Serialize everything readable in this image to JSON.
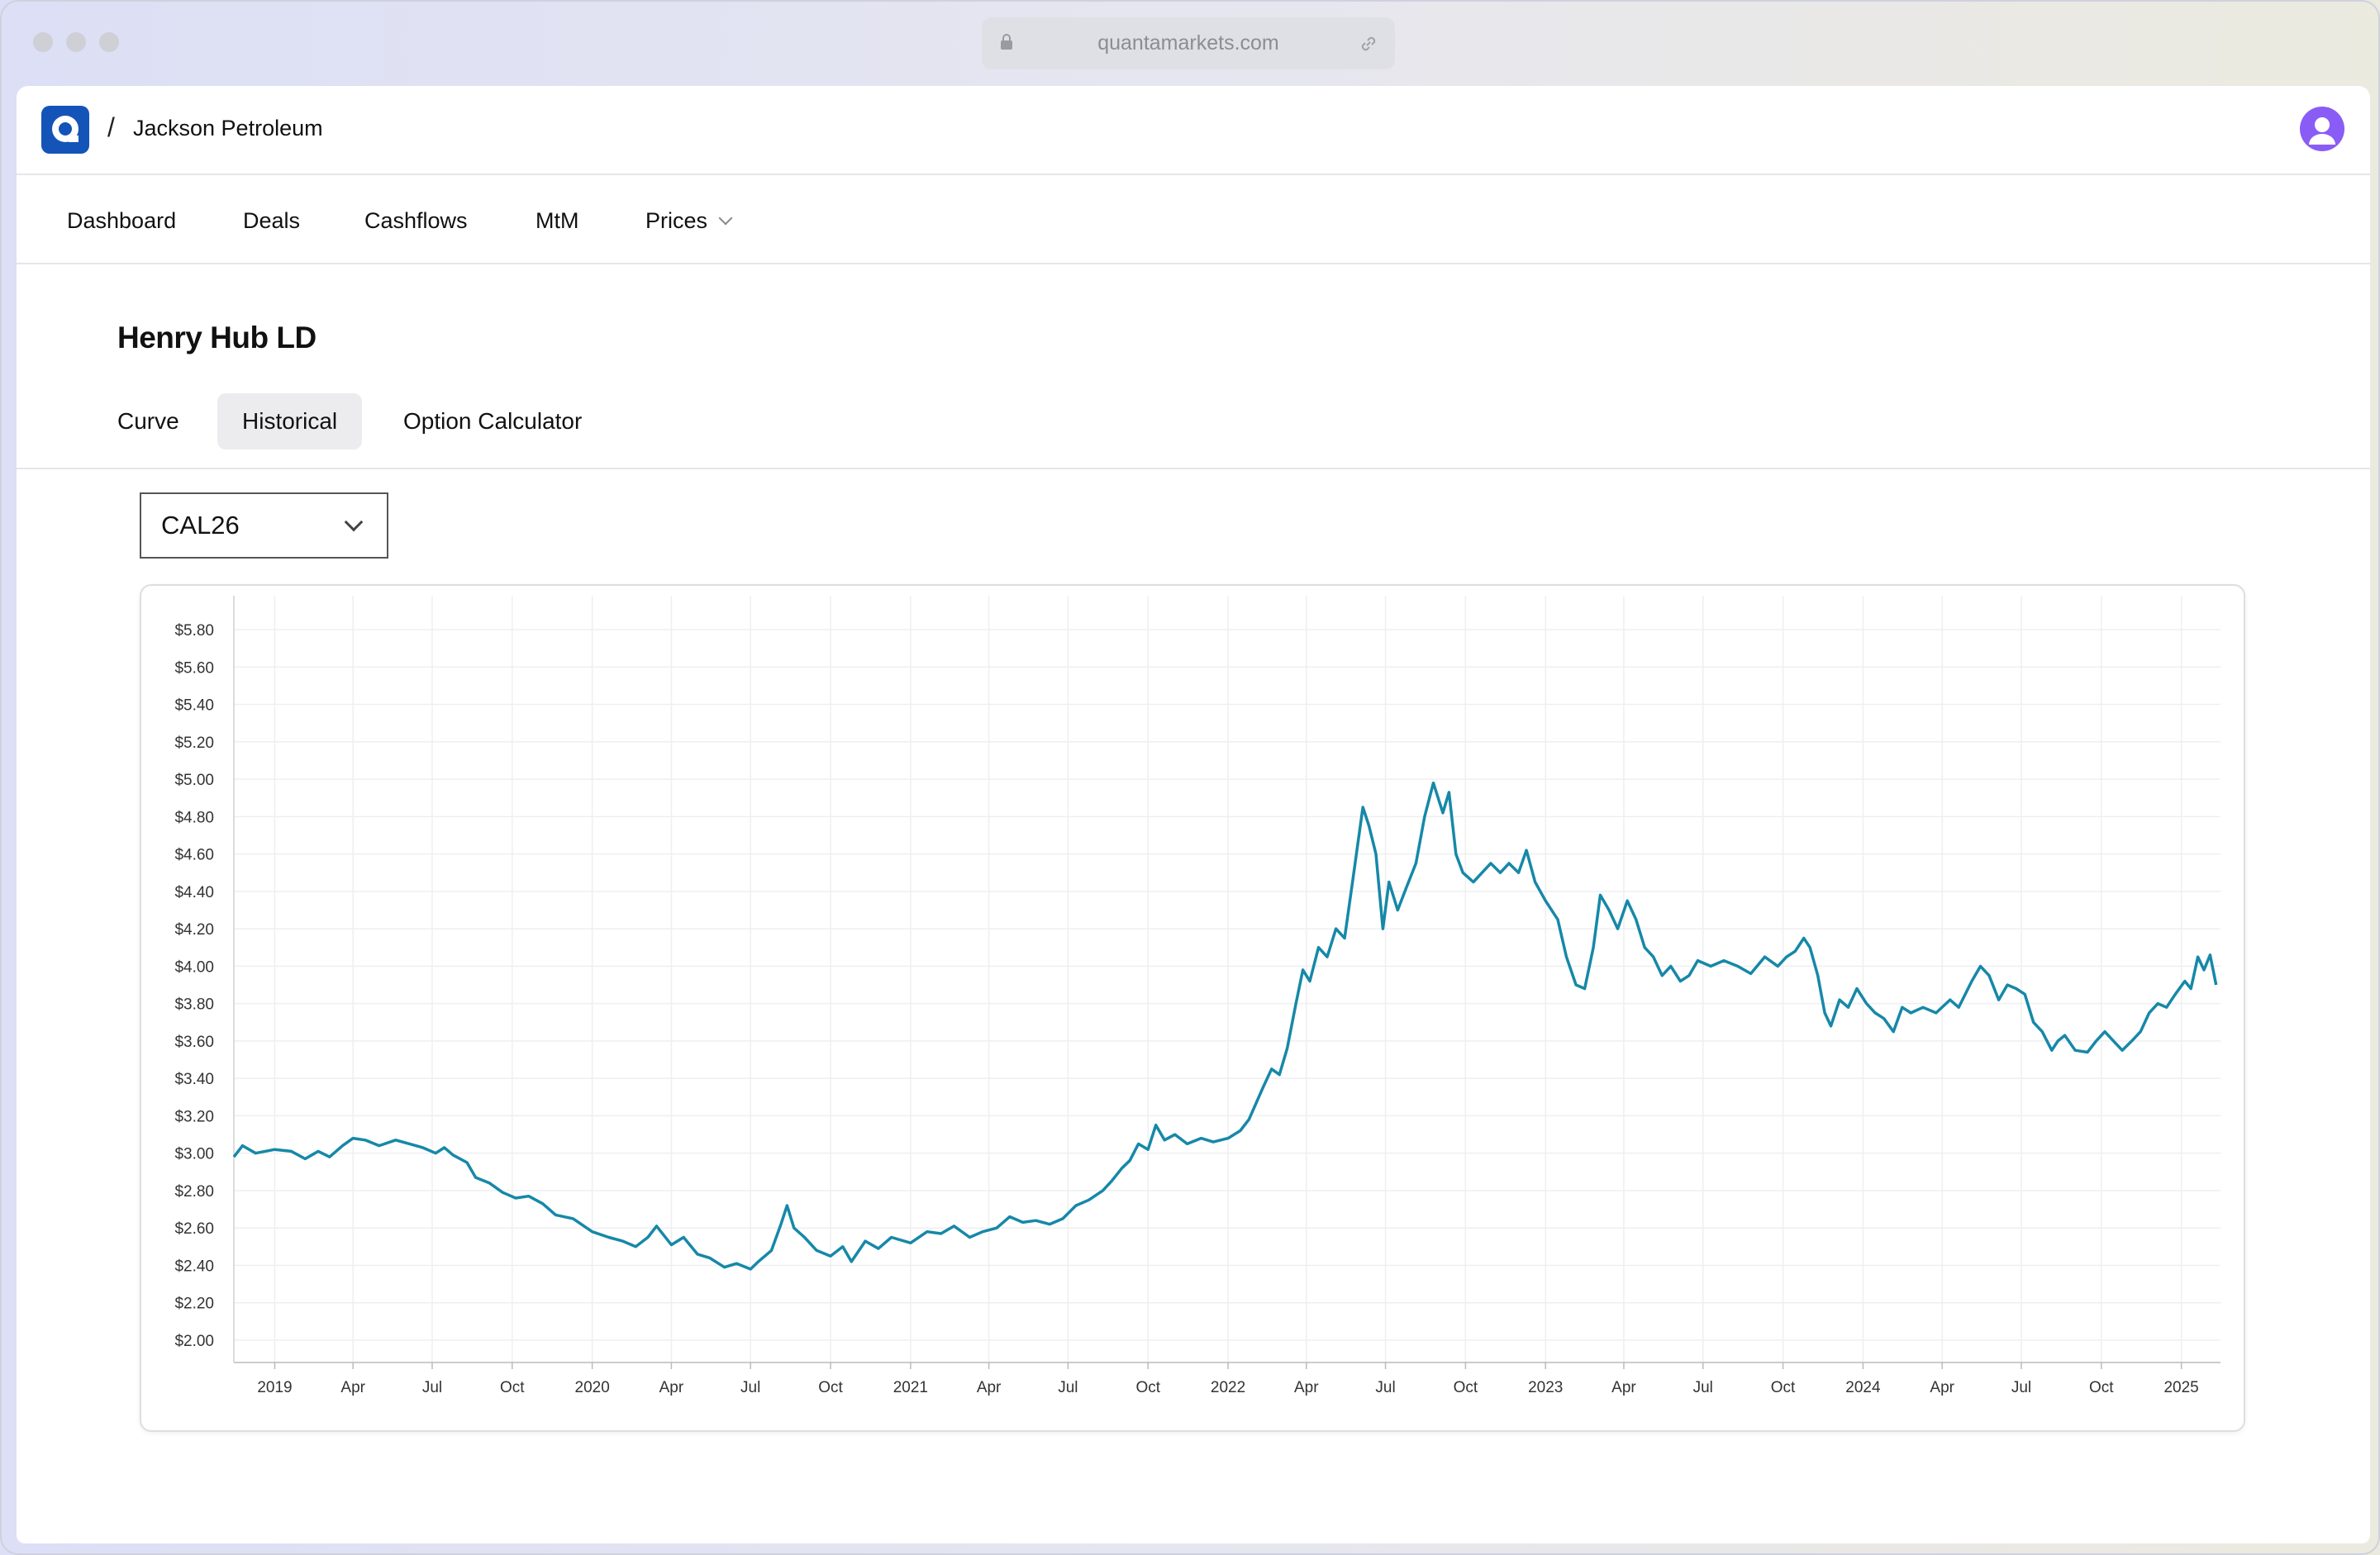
{
  "browser": {
    "url": "quantamarkets.com"
  },
  "header": {
    "separator": "/",
    "org_name": "Jackson Petroleum"
  },
  "nav": {
    "items": [
      {
        "label": "Dashboard"
      },
      {
        "label": "Deals"
      },
      {
        "label": "Cashflows"
      },
      {
        "label": "MtM"
      },
      {
        "label": "Prices"
      }
    ]
  },
  "page": {
    "title": "Henry Hub LD",
    "tabs": [
      {
        "label": "Curve"
      },
      {
        "label": "Historical"
      },
      {
        "label": "Option Calculator"
      }
    ],
    "active_tab": "Historical",
    "contract_select": {
      "value": "CAL26"
    }
  },
  "colors": {
    "line": "#1688a8",
    "brand": "#1454b8",
    "avatar": "#8a5cf6",
    "active_tab_bg": "#ececee"
  },
  "chart_data": {
    "type": "line",
    "title": "",
    "xlabel": "",
    "ylabel": "",
    "ylim": [
      2.0,
      5.8
    ],
    "y_ticks": [
      2.0,
      2.2,
      2.4,
      2.6,
      2.8,
      3.0,
      3.2,
      3.4,
      3.6,
      3.8,
      4.0,
      4.2,
      4.4,
      4.6,
      4.8,
      5.0,
      5.2,
      5.4,
      5.6,
      5.8
    ],
    "y_tick_labels": [
      "$2.00",
      "$2.20",
      "$2.40",
      "$2.60",
      "$2.80",
      "$3.00",
      "$3.20",
      "$3.40",
      "$3.60",
      "$3.80",
      "$4.00",
      "$4.20",
      "$4.40",
      "$4.60",
      "$4.80",
      "$5.00",
      "$5.20",
      "$5.40",
      "$5.60",
      "$5.80"
    ],
    "x_ticks": [
      "2019-01-01",
      "2019-04-01",
      "2019-07-01",
      "2019-10-01",
      "2020-01-01",
      "2020-04-01",
      "2020-07-01",
      "2020-10-01",
      "2021-01-01",
      "2021-04-01",
      "2021-07-01",
      "2021-10-01",
      "2022-01-01",
      "2022-04-01",
      "2022-07-01",
      "2022-10-01",
      "2023-01-01",
      "2023-04-01",
      "2023-07-01",
      "2023-10-01",
      "2024-01-01",
      "2024-04-01",
      "2024-07-01",
      "2024-10-01",
      "2025-01-01"
    ],
    "x_tick_labels": [
      "2019",
      "Apr",
      "Jul",
      "Oct",
      "2020",
      "Apr",
      "Jul",
      "Oct",
      "2021",
      "Apr",
      "Jul",
      "Oct",
      "2022",
      "Apr",
      "Jul",
      "Oct",
      "2023",
      "Apr",
      "Jul",
      "Oct",
      "2024",
      "Apr",
      "Jul",
      "Oct",
      "2025"
    ],
    "xlim": [
      "2018-11-15",
      "2025-02-15"
    ],
    "grid": true,
    "series": [
      {
        "name": "",
        "points": [
          [
            "2018-11-15",
            2.98
          ],
          [
            "2018-11-25",
            3.04
          ],
          [
            "2018-12-10",
            3.0
          ],
          [
            "2019-01-01",
            3.02
          ],
          [
            "2019-01-20",
            3.01
          ],
          [
            "2019-02-05",
            2.97
          ],
          [
            "2019-02-20",
            3.01
          ],
          [
            "2019-03-05",
            2.98
          ],
          [
            "2019-03-20",
            3.04
          ],
          [
            "2019-04-01",
            3.08
          ],
          [
            "2019-04-15",
            3.07
          ],
          [
            "2019-05-01",
            3.04
          ],
          [
            "2019-05-20",
            3.07
          ],
          [
            "2019-06-05",
            3.05
          ],
          [
            "2019-06-20",
            3.03
          ],
          [
            "2019-07-05",
            3.0
          ],
          [
            "2019-07-15",
            3.03
          ],
          [
            "2019-07-25",
            2.99
          ],
          [
            "2019-08-10",
            2.95
          ],
          [
            "2019-08-20",
            2.87
          ],
          [
            "2019-09-05",
            2.84
          ],
          [
            "2019-09-20",
            2.79
          ],
          [
            "2019-10-05",
            2.76
          ],
          [
            "2019-10-20",
            2.77
          ],
          [
            "2019-11-05",
            2.73
          ],
          [
            "2019-11-20",
            2.67
          ],
          [
            "2019-12-10",
            2.65
          ],
          [
            "2020-01-01",
            2.58
          ],
          [
            "2020-01-20",
            2.55
          ],
          [
            "2020-02-05",
            2.53
          ],
          [
            "2020-02-20",
            2.5
          ],
          [
            "2020-03-05",
            2.55
          ],
          [
            "2020-03-15",
            2.61
          ],
          [
            "2020-04-01",
            2.51
          ],
          [
            "2020-04-15",
            2.55
          ],
          [
            "2020-05-01",
            2.46
          ],
          [
            "2020-05-15",
            2.44
          ],
          [
            "2020-06-01",
            2.39
          ],
          [
            "2020-06-15",
            2.41
          ],
          [
            "2020-07-01",
            2.38
          ],
          [
            "2020-07-10",
            2.42
          ],
          [
            "2020-07-25",
            2.48
          ],
          [
            "2020-08-05",
            2.62
          ],
          [
            "2020-08-12",
            2.72
          ],
          [
            "2020-08-20",
            2.6
          ],
          [
            "2020-09-01",
            2.55
          ],
          [
            "2020-09-15",
            2.48
          ],
          [
            "2020-10-01",
            2.45
          ],
          [
            "2020-10-15",
            2.5
          ],
          [
            "2020-10-25",
            2.42
          ],
          [
            "2020-11-10",
            2.53
          ],
          [
            "2020-11-25",
            2.49
          ],
          [
            "2020-12-10",
            2.55
          ],
          [
            "2021-01-01",
            2.52
          ],
          [
            "2021-01-20",
            2.58
          ],
          [
            "2021-02-05",
            2.57
          ],
          [
            "2021-02-20",
            2.61
          ],
          [
            "2021-03-10",
            2.55
          ],
          [
            "2021-03-25",
            2.58
          ],
          [
            "2021-04-10",
            2.6
          ],
          [
            "2021-04-25",
            2.66
          ],
          [
            "2021-05-10",
            2.63
          ],
          [
            "2021-05-25",
            2.64
          ],
          [
            "2021-06-10",
            2.62
          ],
          [
            "2021-06-25",
            2.65
          ],
          [
            "2021-07-10",
            2.72
          ],
          [
            "2021-07-25",
            2.75
          ],
          [
            "2021-08-10",
            2.8
          ],
          [
            "2021-08-20",
            2.85
          ],
          [
            "2021-09-01",
            2.92
          ],
          [
            "2021-09-10",
            2.96
          ],
          [
            "2021-09-20",
            3.05
          ],
          [
            "2021-10-01",
            3.02
          ],
          [
            "2021-10-10",
            3.15
          ],
          [
            "2021-10-20",
            3.07
          ],
          [
            "2021-11-01",
            3.1
          ],
          [
            "2021-11-15",
            3.05
          ],
          [
            "2021-12-01",
            3.08
          ],
          [
            "2021-12-15",
            3.06
          ],
          [
            "2022-01-01",
            3.08
          ],
          [
            "2022-01-15",
            3.12
          ],
          [
            "2022-01-25",
            3.18
          ],
          [
            "2022-02-10",
            3.35
          ],
          [
            "2022-02-20",
            3.45
          ],
          [
            "2022-03-01",
            3.42
          ],
          [
            "2022-03-10",
            3.56
          ],
          [
            "2022-03-20",
            3.8
          ],
          [
            "2022-03-28",
            3.98
          ],
          [
            "2022-04-05",
            3.92
          ],
          [
            "2022-04-15",
            4.1
          ],
          [
            "2022-04-25",
            4.05
          ],
          [
            "2022-05-05",
            4.2
          ],
          [
            "2022-05-15",
            4.15
          ],
          [
            "2022-05-25",
            4.48
          ],
          [
            "2022-06-05",
            4.85
          ],
          [
            "2022-06-12",
            4.75
          ],
          [
            "2022-06-20",
            4.6
          ],
          [
            "2022-06-28",
            4.2
          ],
          [
            "2022-07-05",
            4.45
          ],
          [
            "2022-07-15",
            4.3
          ],
          [
            "2022-07-25",
            4.42
          ],
          [
            "2022-08-05",
            4.55
          ],
          [
            "2022-08-15",
            4.8
          ],
          [
            "2022-08-25",
            4.98
          ],
          [
            "2022-09-05",
            4.82
          ],
          [
            "2022-09-12",
            4.93
          ],
          [
            "2022-09-20",
            4.6
          ],
          [
            "2022-09-28",
            4.5
          ],
          [
            "2022-10-10",
            4.45
          ],
          [
            "2022-10-20",
            4.5
          ],
          [
            "2022-10-30",
            4.55
          ],
          [
            "2022-11-10",
            4.5
          ],
          [
            "2022-11-20",
            4.55
          ],
          [
            "2022-12-01",
            4.5
          ],
          [
            "2022-12-10",
            4.62
          ],
          [
            "2022-12-20",
            4.45
          ],
          [
            "2023-01-01",
            4.35
          ],
          [
            "2023-01-15",
            4.25
          ],
          [
            "2023-01-25",
            4.05
          ],
          [
            "2023-02-05",
            3.9
          ],
          [
            "2023-02-15",
            3.88
          ],
          [
            "2023-02-25",
            4.1
          ],
          [
            "2023-03-05",
            4.38
          ],
          [
            "2023-03-15",
            4.3
          ],
          [
            "2023-03-25",
            4.2
          ],
          [
            "2023-04-05",
            4.35
          ],
          [
            "2023-04-15",
            4.25
          ],
          [
            "2023-04-25",
            4.1
          ],
          [
            "2023-05-05",
            4.05
          ],
          [
            "2023-05-15",
            3.95
          ],
          [
            "2023-05-25",
            4.0
          ],
          [
            "2023-06-05",
            3.92
          ],
          [
            "2023-06-15",
            3.95
          ],
          [
            "2023-06-25",
            4.03
          ],
          [
            "2023-07-10",
            4.0
          ],
          [
            "2023-07-25",
            4.03
          ],
          [
            "2023-08-10",
            4.0
          ],
          [
            "2023-08-25",
            3.96
          ],
          [
            "2023-09-10",
            4.05
          ],
          [
            "2023-09-25",
            4.0
          ],
          [
            "2023-10-05",
            4.05
          ],
          [
            "2023-10-15",
            4.08
          ],
          [
            "2023-10-25",
            4.15
          ],
          [
            "2023-11-01",
            4.1
          ],
          [
            "2023-11-10",
            3.95
          ],
          [
            "2023-11-18",
            3.75
          ],
          [
            "2023-11-25",
            3.68
          ],
          [
            "2023-12-05",
            3.82
          ],
          [
            "2023-12-15",
            3.78
          ],
          [
            "2023-12-25",
            3.88
          ],
          [
            "2024-01-05",
            3.8
          ],
          [
            "2024-01-15",
            3.75
          ],
          [
            "2024-01-25",
            3.72
          ],
          [
            "2024-02-05",
            3.65
          ],
          [
            "2024-02-15",
            3.78
          ],
          [
            "2024-02-25",
            3.75
          ],
          [
            "2024-03-10",
            3.78
          ],
          [
            "2024-03-25",
            3.75
          ],
          [
            "2024-04-10",
            3.82
          ],
          [
            "2024-04-20",
            3.78
          ],
          [
            "2024-05-05",
            3.92
          ],
          [
            "2024-05-15",
            4.0
          ],
          [
            "2024-05-25",
            3.95
          ],
          [
            "2024-06-05",
            3.82
          ],
          [
            "2024-06-15",
            3.9
          ],
          [
            "2024-06-25",
            3.88
          ],
          [
            "2024-07-05",
            3.85
          ],
          [
            "2024-07-15",
            3.7
          ],
          [
            "2024-07-25",
            3.65
          ],
          [
            "2024-08-05",
            3.55
          ],
          [
            "2024-08-12",
            3.6
          ],
          [
            "2024-08-20",
            3.63
          ],
          [
            "2024-09-01",
            3.55
          ],
          [
            "2024-09-15",
            3.54
          ],
          [
            "2024-09-25",
            3.6
          ],
          [
            "2024-10-05",
            3.65
          ],
          [
            "2024-10-15",
            3.6
          ],
          [
            "2024-10-25",
            3.55
          ],
          [
            "2024-11-05",
            3.6
          ],
          [
            "2024-11-15",
            3.65
          ],
          [
            "2024-11-25",
            3.75
          ],
          [
            "2024-12-05",
            3.8
          ],
          [
            "2024-12-15",
            3.78
          ],
          [
            "2024-12-25",
            3.85
          ],
          [
            "2025-01-05",
            3.92
          ],
          [
            "2025-01-12",
            3.88
          ],
          [
            "2025-01-20",
            4.05
          ],
          [
            "2025-01-27",
            3.98
          ],
          [
            "2025-02-03",
            4.06
          ],
          [
            "2025-02-10",
            3.9
          ]
        ]
      }
    ]
  }
}
